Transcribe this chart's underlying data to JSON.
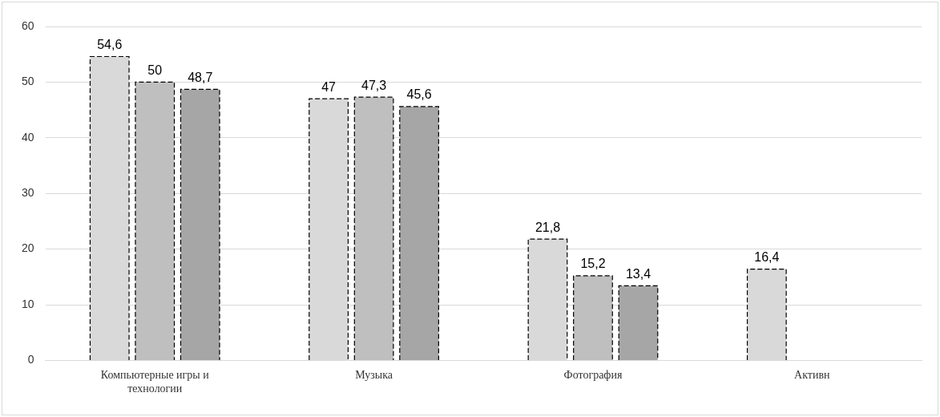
{
  "chart_data": {
    "type": "bar",
    "categories": [
      "Компьютерные игры и технологии",
      "Музыка",
      "Фотография",
      "Активн"
    ],
    "series": [
      {
        "color": "#d9d9d9",
        "values": [
          54.6,
          47,
          21.8,
          16.4
        ],
        "value_labels": [
          "54,6",
          "47",
          "21,8",
          "16,4"
        ]
      },
      {
        "color": "#bfbfbf",
        "values": [
          50,
          47.3,
          15.2,
          null
        ],
        "value_labels": [
          "50",
          "47,3",
          "15,2",
          null
        ]
      },
      {
        "color": "#a6a6a6",
        "values": [
          48.7,
          45.6,
          13.4,
          null
        ],
        "value_labels": [
          "48,7",
          "45,6",
          "13,4",
          null
        ]
      }
    ],
    "ylim": [
      0,
      60
    ],
    "yticks": [
      0,
      10,
      20,
      30,
      40,
      50,
      60
    ],
    "grid": "y",
    "legend": false,
    "line_style": "dashed"
  }
}
